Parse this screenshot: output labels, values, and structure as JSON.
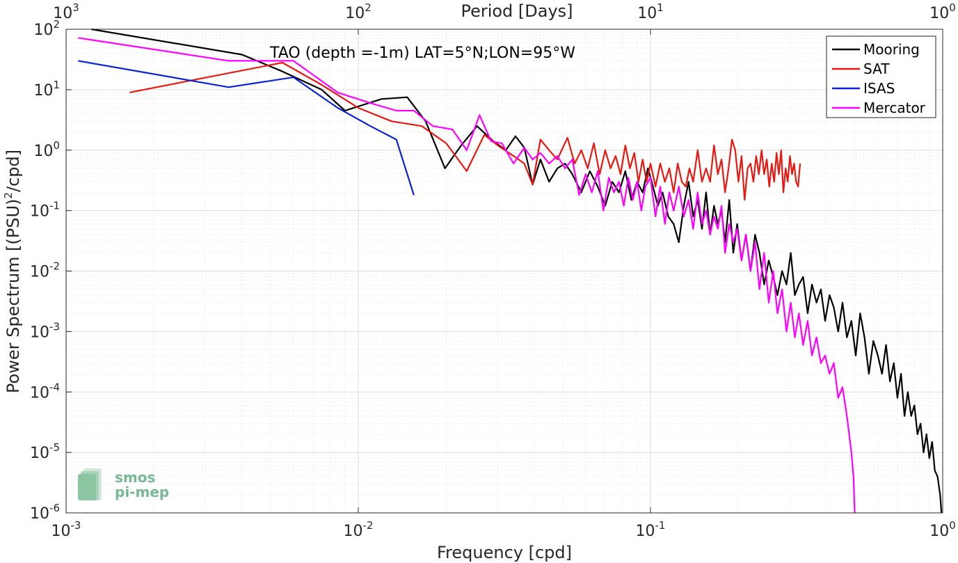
{
  "chart_data": {
    "type": "line",
    "title": "TAO (depth =-1m) LAT=5°N;LON=95°W",
    "xlabel": "Frequency [cpd]",
    "ylabel_main": "Power Spectrum [(PSU)",
    "ylabel_sup": "2",
    "ylabel_tail": "/cpd]",
    "top_xlabel": "Period [Days]",
    "x_scale": "log",
    "y_scale": "log",
    "xlim": [
      0.001,
      1
    ],
    "ylim": [
      1e-06,
      100
    ],
    "grid": true,
    "legend_position": "top-right",
    "x_ticks": [
      {
        "base": "10",
        "exp": "-3",
        "value": 0.001
      },
      {
        "base": "10",
        "exp": "-2",
        "value": 0.01
      },
      {
        "base": "10",
        "exp": "-1",
        "value": 0.1
      },
      {
        "base": "10",
        "exp": "0",
        "value": 1
      }
    ],
    "top_ticks": [
      {
        "base": "10",
        "exp": "3",
        "freq": 0.001
      },
      {
        "base": "10",
        "exp": "2",
        "freq": 0.01
      },
      {
        "base": "10",
        "exp": "1",
        "freq": 0.1
      },
      {
        "base": "10",
        "exp": "0",
        "freq": 1
      }
    ],
    "y_ticks": [
      {
        "base": "10",
        "exp": "2",
        "value": 100
      },
      {
        "base": "10",
        "exp": "1",
        "value": 10
      },
      {
        "base": "10",
        "exp": "0",
        "value": 1
      },
      {
        "base": "10",
        "exp": "-1",
        "value": 0.1
      },
      {
        "base": "10",
        "exp": "-2",
        "value": 0.01
      },
      {
        "base": "10",
        "exp": "-3",
        "value": 0.001
      },
      {
        "base": "10",
        "exp": "-4",
        "value": 0.0001
      },
      {
        "base": "10",
        "exp": "-5",
        "value": 1e-05
      },
      {
        "base": "10",
        "exp": "-6",
        "value": 1e-06
      }
    ],
    "series": [
      {
        "name": "Mooring",
        "color": "#000000",
        "x": [
          0.00122,
          0.004,
          0.0055,
          0.0075,
          0.009,
          0.012,
          0.0147,
          0.017,
          0.0198,
          0.0225,
          0.0255,
          0.029,
          0.032,
          0.0345,
          0.037,
          0.0395,
          0.042,
          0.045,
          0.048,
          0.051,
          0.054,
          0.058,
          0.062,
          0.066,
          0.07,
          0.074,
          0.078,
          0.082,
          0.086,
          0.09,
          0.094,
          0.098,
          0.102,
          0.106,
          0.11,
          0.115,
          0.12,
          0.125,
          0.13,
          0.135,
          0.14,
          0.145,
          0.15,
          0.155,
          0.16,
          0.165,
          0.17,
          0.175,
          0.18,
          0.186,
          0.192,
          0.198,
          0.205,
          0.212,
          0.22,
          0.228,
          0.236,
          0.245,
          0.254,
          0.263,
          0.272,
          0.282,
          0.292,
          0.302,
          0.312,
          0.322,
          0.333,
          0.345,
          0.357,
          0.37,
          0.383,
          0.396,
          0.41,
          0.424,
          0.439,
          0.454,
          0.47,
          0.487,
          0.504,
          0.522,
          0.54,
          0.559,
          0.579,
          0.6,
          0.62,
          0.64,
          0.66,
          0.68,
          0.7,
          0.72,
          0.74,
          0.76,
          0.78,
          0.8,
          0.82,
          0.84,
          0.86,
          0.88,
          0.9,
          0.92,
          0.94,
          0.96,
          0.98,
          0.99
        ],
        "y": [
          100,
          38,
          20,
          10,
          4.5,
          7,
          7.5,
          3,
          0.5,
          1.2,
          2.5,
          1.4,
          1.0,
          1.7,
          1.1,
          0.27,
          0.7,
          0.3,
          0.5,
          0.6,
          0.4,
          0.2,
          0.45,
          0.25,
          0.12,
          0.3,
          0.2,
          0.45,
          0.15,
          0.3,
          0.2,
          0.5,
          0.25,
          0.12,
          0.2,
          0.08,
          0.06,
          0.03,
          0.12,
          0.3,
          0.08,
          0.15,
          0.05,
          0.2,
          0.04,
          0.12,
          0.06,
          0.1,
          0.03,
          0.15,
          0.02,
          0.06,
          0.015,
          0.04,
          0.01,
          0.04,
          0.02,
          0.006,
          0.015,
          0.008,
          0.004,
          0.01,
          0.006,
          0.02,
          0.004,
          0.006,
          0.008,
          0.002,
          0.006,
          0.003,
          0.005,
          0.0015,
          0.004,
          0.0025,
          0.001,
          0.003,
          0.0008,
          0.0015,
          0.0004,
          0.002,
          0.0008,
          0.0002,
          0.0007,
          0.0004,
          0.0002,
          0.0006,
          0.00015,
          0.0003,
          8e-05,
          0.0002,
          4e-05,
          0.0001,
          4e-05,
          6e-05,
          2e-05,
          3e-05,
          1e-05,
          2e-05,
          8e-06,
          1.5e-05,
          5e-06,
          4e-06,
          2e-06,
          1e-06
        ]
      },
      {
        "name": "SAT",
        "color": "#e8170f",
        "x": [
          0.00165,
          0.0055,
          0.0075,
          0.01,
          0.013,
          0.0165,
          0.02,
          0.0235,
          0.027,
          0.03,
          0.034,
          0.037,
          0.0395,
          0.042,
          0.045,
          0.048,
          0.052,
          0.055,
          0.058,
          0.061,
          0.064,
          0.067,
          0.07,
          0.073,
          0.076,
          0.079,
          0.082,
          0.085,
          0.088,
          0.091,
          0.094,
          0.097,
          0.1,
          0.104,
          0.108,
          0.112,
          0.116,
          0.12,
          0.124,
          0.128,
          0.132,
          0.136,
          0.14,
          0.145,
          0.15,
          0.155,
          0.16,
          0.165,
          0.17,
          0.175,
          0.18,
          0.185,
          0.19,
          0.195,
          0.2,
          0.205,
          0.21,
          0.215,
          0.22,
          0.225,
          0.23,
          0.235,
          0.24,
          0.245,
          0.25,
          0.255,
          0.26,
          0.265,
          0.27,
          0.275,
          0.28,
          0.285,
          0.29,
          0.295,
          0.3,
          0.305,
          0.31,
          0.315,
          0.32,
          0.325
        ],
        "y": [
          9,
          28,
          12,
          5,
          3,
          2.5,
          1.3,
          0.45,
          1.8,
          1.2,
          0.8,
          0.6,
          0.27,
          1.5,
          1.0,
          0.7,
          1.6,
          0.6,
          1.0,
          0.5,
          1.3,
          0.4,
          1.0,
          0.5,
          0.8,
          0.4,
          1.2,
          0.5,
          0.9,
          0.3,
          0.7,
          0.3,
          0.6,
          0.25,
          0.6,
          0.3,
          0.5,
          0.2,
          0.6,
          0.3,
          0.25,
          0.5,
          0.3,
          1.0,
          0.3,
          0.5,
          0.3,
          1.2,
          0.4,
          0.7,
          0.2,
          0.5,
          1.5,
          1.0,
          0.3,
          0.8,
          0.15,
          0.5,
          0.6,
          0.3,
          0.8,
          0.4,
          1.0,
          0.4,
          0.7,
          0.25,
          0.6,
          0.3,
          0.9,
          0.4,
          1.0,
          0.2,
          0.5,
          0.3,
          0.8,
          0.4,
          0.6,
          0.3,
          0.25,
          0.6
        ]
      },
      {
        "name": "ISAS",
        "color": "#0a22d6",
        "x": [
          0.0011,
          0.0036,
          0.006,
          0.0085,
          0.011,
          0.0135,
          0.0155
        ],
        "y": [
          30,
          11,
          16,
          5,
          2.5,
          1.5,
          0.18
        ]
      },
      {
        "name": "Mercator",
        "color": "#ff00ff",
        "x": [
          0.0011,
          0.0036,
          0.006,
          0.0085,
          0.011,
          0.0135,
          0.0155,
          0.018,
          0.021,
          0.0235,
          0.026,
          0.0285,
          0.031,
          0.034,
          0.037,
          0.0395,
          0.042,
          0.045,
          0.048,
          0.051,
          0.054,
          0.057,
          0.06,
          0.063,
          0.066,
          0.069,
          0.072,
          0.075,
          0.078,
          0.081,
          0.084,
          0.087,
          0.09,
          0.093,
          0.096,
          0.1,
          0.104,
          0.108,
          0.112,
          0.116,
          0.12,
          0.125,
          0.13,
          0.135,
          0.14,
          0.145,
          0.15,
          0.155,
          0.16,
          0.165,
          0.17,
          0.175,
          0.18,
          0.186,
          0.192,
          0.198,
          0.205,
          0.212,
          0.22,
          0.228,
          0.236,
          0.245,
          0.254,
          0.263,
          0.272,
          0.282,
          0.292,
          0.302,
          0.312,
          0.322,
          0.333,
          0.345,
          0.357,
          0.37,
          0.383,
          0.396,
          0.41,
          0.424,
          0.439,
          0.454,
          0.47,
          0.487,
          0.495,
          0.5
        ],
        "y": [
          72,
          30,
          30,
          9,
          6,
          4.5,
          4.5,
          2.5,
          2.2,
          1.0,
          3.8,
          1.4,
          1.3,
          0.6,
          1.1,
          0.7,
          0.9,
          0.6,
          0.8,
          0.5,
          0.7,
          0.18,
          0.4,
          0.2,
          0.45,
          0.1,
          0.35,
          0.2,
          0.3,
          0.12,
          0.35,
          0.15,
          0.3,
          0.1,
          0.25,
          0.35,
          0.08,
          0.25,
          0.06,
          0.2,
          0.1,
          0.25,
          0.08,
          0.15,
          0.05,
          0.2,
          0.06,
          0.1,
          0.04,
          0.08,
          0.05,
          0.12,
          0.02,
          0.06,
          0.03,
          0.05,
          0.015,
          0.04,
          0.01,
          0.03,
          0.005,
          0.02,
          0.003,
          0.01,
          0.002,
          0.005,
          0.001,
          0.003,
          0.0008,
          0.002,
          0.0006,
          0.0015,
          0.0004,
          0.0008,
          0.0003,
          0.0004,
          0.0002,
          0.0003,
          8e-05,
          0.00012,
          4e-05,
          1e-05,
          4e-06,
          1e-06
        ]
      }
    ]
  },
  "logo": {
    "line1": "smos",
    "line2": "pi-mep",
    "color": "#78b894"
  }
}
